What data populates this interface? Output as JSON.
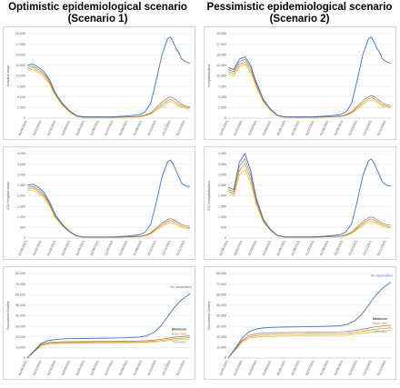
{
  "columns": [
    {
      "line1": "Optimistic epidemiological scenario",
      "line2": "(Scenario 1)"
    },
    {
      "line1": "Pessimistic epidemiological scenario",
      "line2": "(Scenario 2)"
    }
  ],
  "colors": {
    "no_vaccination": "#4472c4",
    "minimum": "#7f7f7f",
    "base": "#ed7d31",
    "optimistic": "#ffc000",
    "green": "#70ad47"
  },
  "chart_data": [
    {
      "type": "line",
      "scenario": "Scenario 1",
      "ylabel": "Hospital stays",
      "yticks": [
        "0",
        "2,500",
        "5,000",
        "7,500",
        "10,000",
        "12,500",
        "15,000",
        "17,500",
        "20,000"
      ],
      "ylim": [
        0,
        20000
      ],
      "xticks": [
        "01/05/2021",
        "01/02/2021",
        "01/03/2021",
        "01/04/2021",
        "01/05/2021",
        "01/06/2021",
        "01/07/2021",
        "01/08/2021",
        "01/09/2021",
        "01/10/2021",
        "01/11/2021",
        "01/12/2021"
      ],
      "x": [
        0,
        0.4,
        0.8,
        1.2,
        1.6,
        2,
        2.5,
        3,
        3.5,
        4,
        5,
        6,
        7,
        8,
        8.4,
        8.8,
        9.2,
        9.6,
        10,
        10.2,
        10.4,
        10.6,
        10.8,
        11,
        11.2,
        11.4,
        11.6
      ],
      "series": [
        {
          "color_key": "no_vaccination",
          "values": [
            12500,
            12800,
            12000,
            11000,
            9000,
            6000,
            3500,
            1800,
            600,
            300,
            300,
            300,
            500,
            800,
            1500,
            3500,
            9000,
            15000,
            18800,
            19200,
            18000,
            16500,
            15500,
            14000,
            13500,
            13200,
            13000
          ]
        },
        {
          "color_key": "minimum",
          "values": [
            12000,
            12300,
            11500,
            10500,
            8700,
            5800,
            3300,
            1700,
            500,
            250,
            200,
            200,
            300,
            400,
            700,
            1300,
            2500,
            3800,
            4800,
            5000,
            4800,
            4300,
            3800,
            3300,
            3000,
            2800,
            2700
          ]
        },
        {
          "color_key": "base",
          "values": [
            11600,
            11900,
            11100,
            10100,
            8300,
            5600,
            3200,
            1600,
            450,
            200,
            180,
            180,
            260,
            350,
            600,
            1100,
            2100,
            3200,
            4200,
            4400,
            4200,
            3700,
            3300,
            2900,
            2700,
            2500,
            2400
          ]
        },
        {
          "color_key": "optimistic",
          "values": [
            11200,
            11500,
            10700,
            9700,
            8000,
            5400,
            3000,
            1500,
            400,
            180,
            160,
            160,
            230,
            300,
            520,
            950,
            1800,
            2800,
            3700,
            3900,
            3700,
            3300,
            2900,
            2600,
            2400,
            2200,
            2100
          ]
        }
      ]
    },
    {
      "type": "line",
      "scenario": "Scenario 2",
      "ylabel": "Hospitalisation",
      "yticks": [
        "0",
        "2,500",
        "5,000",
        "7,500",
        "10,000",
        "12,500",
        "15,000",
        "17,500",
        "20,000"
      ],
      "ylim": [
        0,
        20000
      ],
      "xticks": [
        "01/05/2021",
        "01/02/2021",
        "01/03/2021",
        "01/04/2021",
        "01/05/2021",
        "01/06/2021",
        "01/07/2021",
        "01/08/2021",
        "01/09/2021",
        "01/10/2021",
        "01/11/2021",
        "01/12/2021"
      ],
      "x": [
        0,
        0.4,
        0.8,
        1.2,
        1.6,
        2,
        2.5,
        3,
        3.5,
        4,
        5,
        6,
        7,
        8,
        8.4,
        8.8,
        9.2,
        9.6,
        10,
        10.2,
        10.4,
        10.6,
        10.8,
        11,
        11.2,
        11.4,
        11.6
      ],
      "series": [
        {
          "color_key": "no_vaccination",
          "values": [
            12000,
            11500,
            14000,
            14500,
            12500,
            8500,
            4500,
            2200,
            700,
            300,
            300,
            300,
            500,
            800,
            1500,
            3500,
            9000,
            15000,
            18800,
            19200,
            18000,
            16500,
            15500,
            14000,
            13500,
            13200,
            13000
          ]
        },
        {
          "color_key": "minimum",
          "values": [
            11500,
            11000,
            13400,
            13900,
            12000,
            8200,
            4300,
            2100,
            650,
            260,
            220,
            220,
            330,
            450,
            800,
            1500,
            2800,
            4100,
            5100,
            5300,
            5100,
            4600,
            4100,
            3600,
            3300,
            3100,
            3000
          ]
        },
        {
          "color_key": "base",
          "values": [
            11000,
            10500,
            12800,
            13200,
            11400,
            7800,
            4100,
            2000,
            600,
            230,
            200,
            200,
            290,
            400,
            700,
            1300,
            2400,
            3600,
            4600,
            4800,
            4600,
            4100,
            3600,
            3200,
            3000,
            2800,
            2700
          ]
        },
        {
          "color_key": "optimistic",
          "values": [
            10500,
            10000,
            12200,
            12600,
            10800,
            7400,
            3900,
            1900,
            550,
            200,
            180,
            180,
            260,
            360,
            620,
            1150,
            2100,
            3200,
            4100,
            4300,
            4100,
            3700,
            3300,
            2900,
            2700,
            2500,
            2400
          ]
        }
      ]
    },
    {
      "type": "line",
      "scenario": "Scenario 1",
      "ylabel": "ICU Hospital stays",
      "yticks": [
        "0",
        "500",
        "1,000",
        "1,500",
        "2,000",
        "2,500",
        "3,000",
        "3,500",
        "4,000"
      ],
      "ylim": [
        0,
        4000
      ],
      "xticks": [
        "01/05/2021",
        "01/02/2021",
        "01/03/2021",
        "01/04/2021",
        "01/05/2021",
        "01/06/2021",
        "01/07/2021",
        "01/08/2021",
        "01/09/2021",
        "01/10/2021",
        "01/11/2021",
        "01/12/2021"
      ],
      "x": [
        0,
        0.4,
        0.8,
        1.2,
        1.6,
        2,
        2.5,
        3,
        3.5,
        4,
        5,
        6,
        7,
        8,
        8.4,
        8.8,
        9.2,
        9.6,
        10,
        10.2,
        10.4,
        10.6,
        10.8,
        11,
        11.2,
        11.4,
        11.6
      ],
      "series": [
        {
          "color_key": "no_vaccination",
          "values": [
            2500,
            2550,
            2400,
            2150,
            1700,
            1100,
            650,
            330,
            110,
            50,
            50,
            50,
            90,
            150,
            280,
            650,
            1700,
            2900,
            3600,
            3700,
            3500,
            3200,
            2900,
            2600,
            2500,
            2450,
            2450
          ]
        },
        {
          "color_key": "minimum",
          "values": [
            2400,
            2450,
            2300,
            2050,
            1620,
            1050,
            620,
            310,
            100,
            45,
            40,
            40,
            60,
            80,
            130,
            250,
            480,
            700,
            880,
            920,
            880,
            800,
            720,
            640,
            600,
            570,
            560
          ]
        },
        {
          "color_key": "base",
          "values": [
            2320,
            2370,
            2220,
            1980,
            1560,
            1010,
            600,
            300,
            95,
            40,
            35,
            35,
            55,
            70,
            115,
            220,
            420,
            620,
            780,
            820,
            780,
            710,
            640,
            570,
            530,
            500,
            490
          ]
        },
        {
          "color_key": "optimistic",
          "values": [
            2240,
            2290,
            2140,
            1910,
            1500,
            970,
            570,
            285,
            90,
            36,
            32,
            32,
            50,
            62,
            100,
            190,
            360,
            540,
            690,
            720,
            690,
            630,
            570,
            510,
            470,
            450,
            440
          ]
        }
      ]
    },
    {
      "type": "line",
      "scenario": "Scenario 2",
      "ylabel": "ICU Hospitalisation",
      "yticks": [
        "0",
        "500",
        "1,000",
        "1,500",
        "2,000",
        "2,500",
        "3,000",
        "3,500",
        "4,000"
      ],
      "ylim": [
        0,
        4000
      ],
      "xticks": [
        "01/05/2021",
        "01/02/2021",
        "01/03/2021",
        "01/04/2021",
        "01/05/2021",
        "01/06/2021",
        "01/07/2021",
        "01/08/2021",
        "01/09/2021",
        "01/10/2021",
        "01/11/2021",
        "01/12/2021"
      ],
      "x": [
        0,
        0.4,
        0.8,
        1.2,
        1.6,
        2,
        2.5,
        3,
        3.5,
        4,
        5,
        6,
        7,
        8,
        8.4,
        8.8,
        9.2,
        9.6,
        10,
        10.2,
        10.4,
        10.6,
        10.8,
        11,
        11.2,
        11.4,
        11.6
      ],
      "series": [
        {
          "color_key": "no_vaccination",
          "values": [
            2400,
            2300,
            3600,
            4000,
            3200,
            1900,
            900,
            420,
            130,
            55,
            55,
            55,
            95,
            160,
            300,
            680,
            1750,
            2950,
            3650,
            3750,
            3550,
            3250,
            2950,
            2650,
            2550,
            2480,
            2470
          ]
        },
        {
          "color_key": "minimum",
          "values": [
            2300,
            2200,
            3400,
            3750,
            3000,
            1800,
            850,
            400,
            120,
            50,
            45,
            45,
            70,
            95,
            150,
            280,
            530,
            770,
            960,
            1000,
            960,
            870,
            780,
            700,
            650,
            620,
            610
          ]
        },
        {
          "color_key": "base",
          "values": [
            2200,
            2100,
            3200,
            3500,
            2800,
            1700,
            800,
            380,
            110,
            45,
            40,
            40,
            62,
            82,
            130,
            245,
            460,
            680,
            860,
            900,
            860,
            780,
            700,
            620,
            580,
            550,
            540
          ]
        },
        {
          "color_key": "optimistic",
          "values": [
            2100,
            2000,
            3000,
            3250,
            2600,
            1600,
            760,
            360,
            100,
            40,
            36,
            36,
            56,
            72,
            115,
            215,
            400,
            600,
            760,
            800,
            760,
            690,
            620,
            560,
            520,
            490,
            480
          ]
        }
      ]
    },
    {
      "type": "line",
      "scenario": "Scenario 1",
      "ylabel": "Cumulative Deaths",
      "yticks": [
        "0",
        "10,000",
        "20,000",
        "30,000",
        "40,000",
        "50,000",
        "60,000",
        "70,000",
        "80,000"
      ],
      "ylim": [
        0,
        80000
      ],
      "xticks": [
        "01/05/2021",
        "01/02/2021",
        "01/03/2021",
        "01/04/2021",
        "01/05/2021",
        "01/06/2021",
        "01/07/2021",
        "01/08/2021",
        "01/09/2021",
        "01/10/2021",
        "01/11/2021",
        "01/12/2021"
      ],
      "x": [
        0,
        0.5,
        1,
        1.5,
        2,
        2.5,
        3,
        4,
        5,
        6,
        7,
        8,
        8.5,
        9,
        9.5,
        10,
        10.5,
        11,
        11.6
      ],
      "labels": [
        "No Vaccination",
        "Minimum",
        "Base case",
        "Optimistic"
      ],
      "series": [
        {
          "color_key": "no_vaccination",
          "values": [
            0,
            7000,
            14000,
            16500,
            17500,
            18000,
            18300,
            18500,
            18700,
            18900,
            19200,
            19800,
            21000,
            24000,
            30000,
            39000,
            48000,
            55000,
            61000
          ]
        },
        {
          "color_key": "minimum",
          "values": [
            0,
            6500,
            13000,
            14700,
            15200,
            15400,
            15500,
            15600,
            15700,
            15800,
            15900,
            16100,
            16400,
            17000,
            17800,
            18800,
            19700,
            20400,
            21000
          ]
        },
        {
          "color_key": "base",
          "values": [
            0,
            6200,
            12300,
            13800,
            14300,
            14500,
            14600,
            14700,
            14800,
            14900,
            15000,
            15200,
            15400,
            15900,
            16500,
            17400,
            18200,
            18800,
            19300
          ]
        },
        {
          "color_key": "optimistic",
          "values": [
            0,
            5900,
            11700,
            13100,
            13600,
            13800,
            13900,
            14000,
            14100,
            14200,
            14300,
            14450,
            14650,
            15100,
            15600,
            16400,
            17100,
            17600,
            18000
          ]
        }
      ]
    },
    {
      "type": "line",
      "scenario": "Scenario 2",
      "ylabel": "Cumulative Deaths",
      "yticks": [
        "0",
        "10,000",
        "20,000",
        "30,000",
        "40,000",
        "50,000",
        "60,000",
        "70,000",
        "80,000"
      ],
      "ylim": [
        0,
        80000
      ],
      "xticks": [
        "01/05/2021",
        "01/02/2021",
        "01/03/2021",
        "01/04/2021",
        "01/05/2021",
        "01/06/2021",
        "01/07/2021",
        "01/08/2021",
        "01/09/2021",
        "01/10/2021",
        "01/11/2021",
        "01/12/2021"
      ],
      "x": [
        0,
        0.5,
        1,
        1.5,
        2,
        2.5,
        3,
        4,
        5,
        6,
        7,
        8,
        8.5,
        9,
        9.5,
        10,
        10.5,
        11,
        11.6
      ],
      "labels": [
        "No Vaccination",
        "Minimum",
        "Base case",
        "Optimistic"
      ],
      "series": [
        {
          "color_key": "no_vaccination",
          "values": [
            0,
            9000,
            19000,
            25000,
            27500,
            28500,
            29000,
            29300,
            29500,
            29700,
            30000,
            30500,
            32000,
            35000,
            41000,
            50000,
            59000,
            66000,
            72000
          ]
        },
        {
          "color_key": "minimum",
          "values": [
            0,
            8200,
            17000,
            21500,
            23000,
            23600,
            23900,
            24100,
            24250,
            24400,
            24550,
            24800,
            25200,
            26000,
            27000,
            28300,
            29500,
            30300,
            31000
          ]
        },
        {
          "color_key": "base",
          "values": [
            0,
            7800,
            16000,
            20000,
            21400,
            21900,
            22200,
            22400,
            22550,
            22700,
            22850,
            23050,
            23400,
            24100,
            25000,
            26200,
            27200,
            28000,
            28600
          ]
        },
        {
          "color_key": "optimistic",
          "values": [
            0,
            7400,
            15000,
            18600,
            19900,
            20400,
            20600,
            20800,
            20950,
            21100,
            21250,
            21400,
            21700,
            22300,
            23100,
            24100,
            25000,
            25700,
            26200
          ]
        }
      ]
    }
  ]
}
